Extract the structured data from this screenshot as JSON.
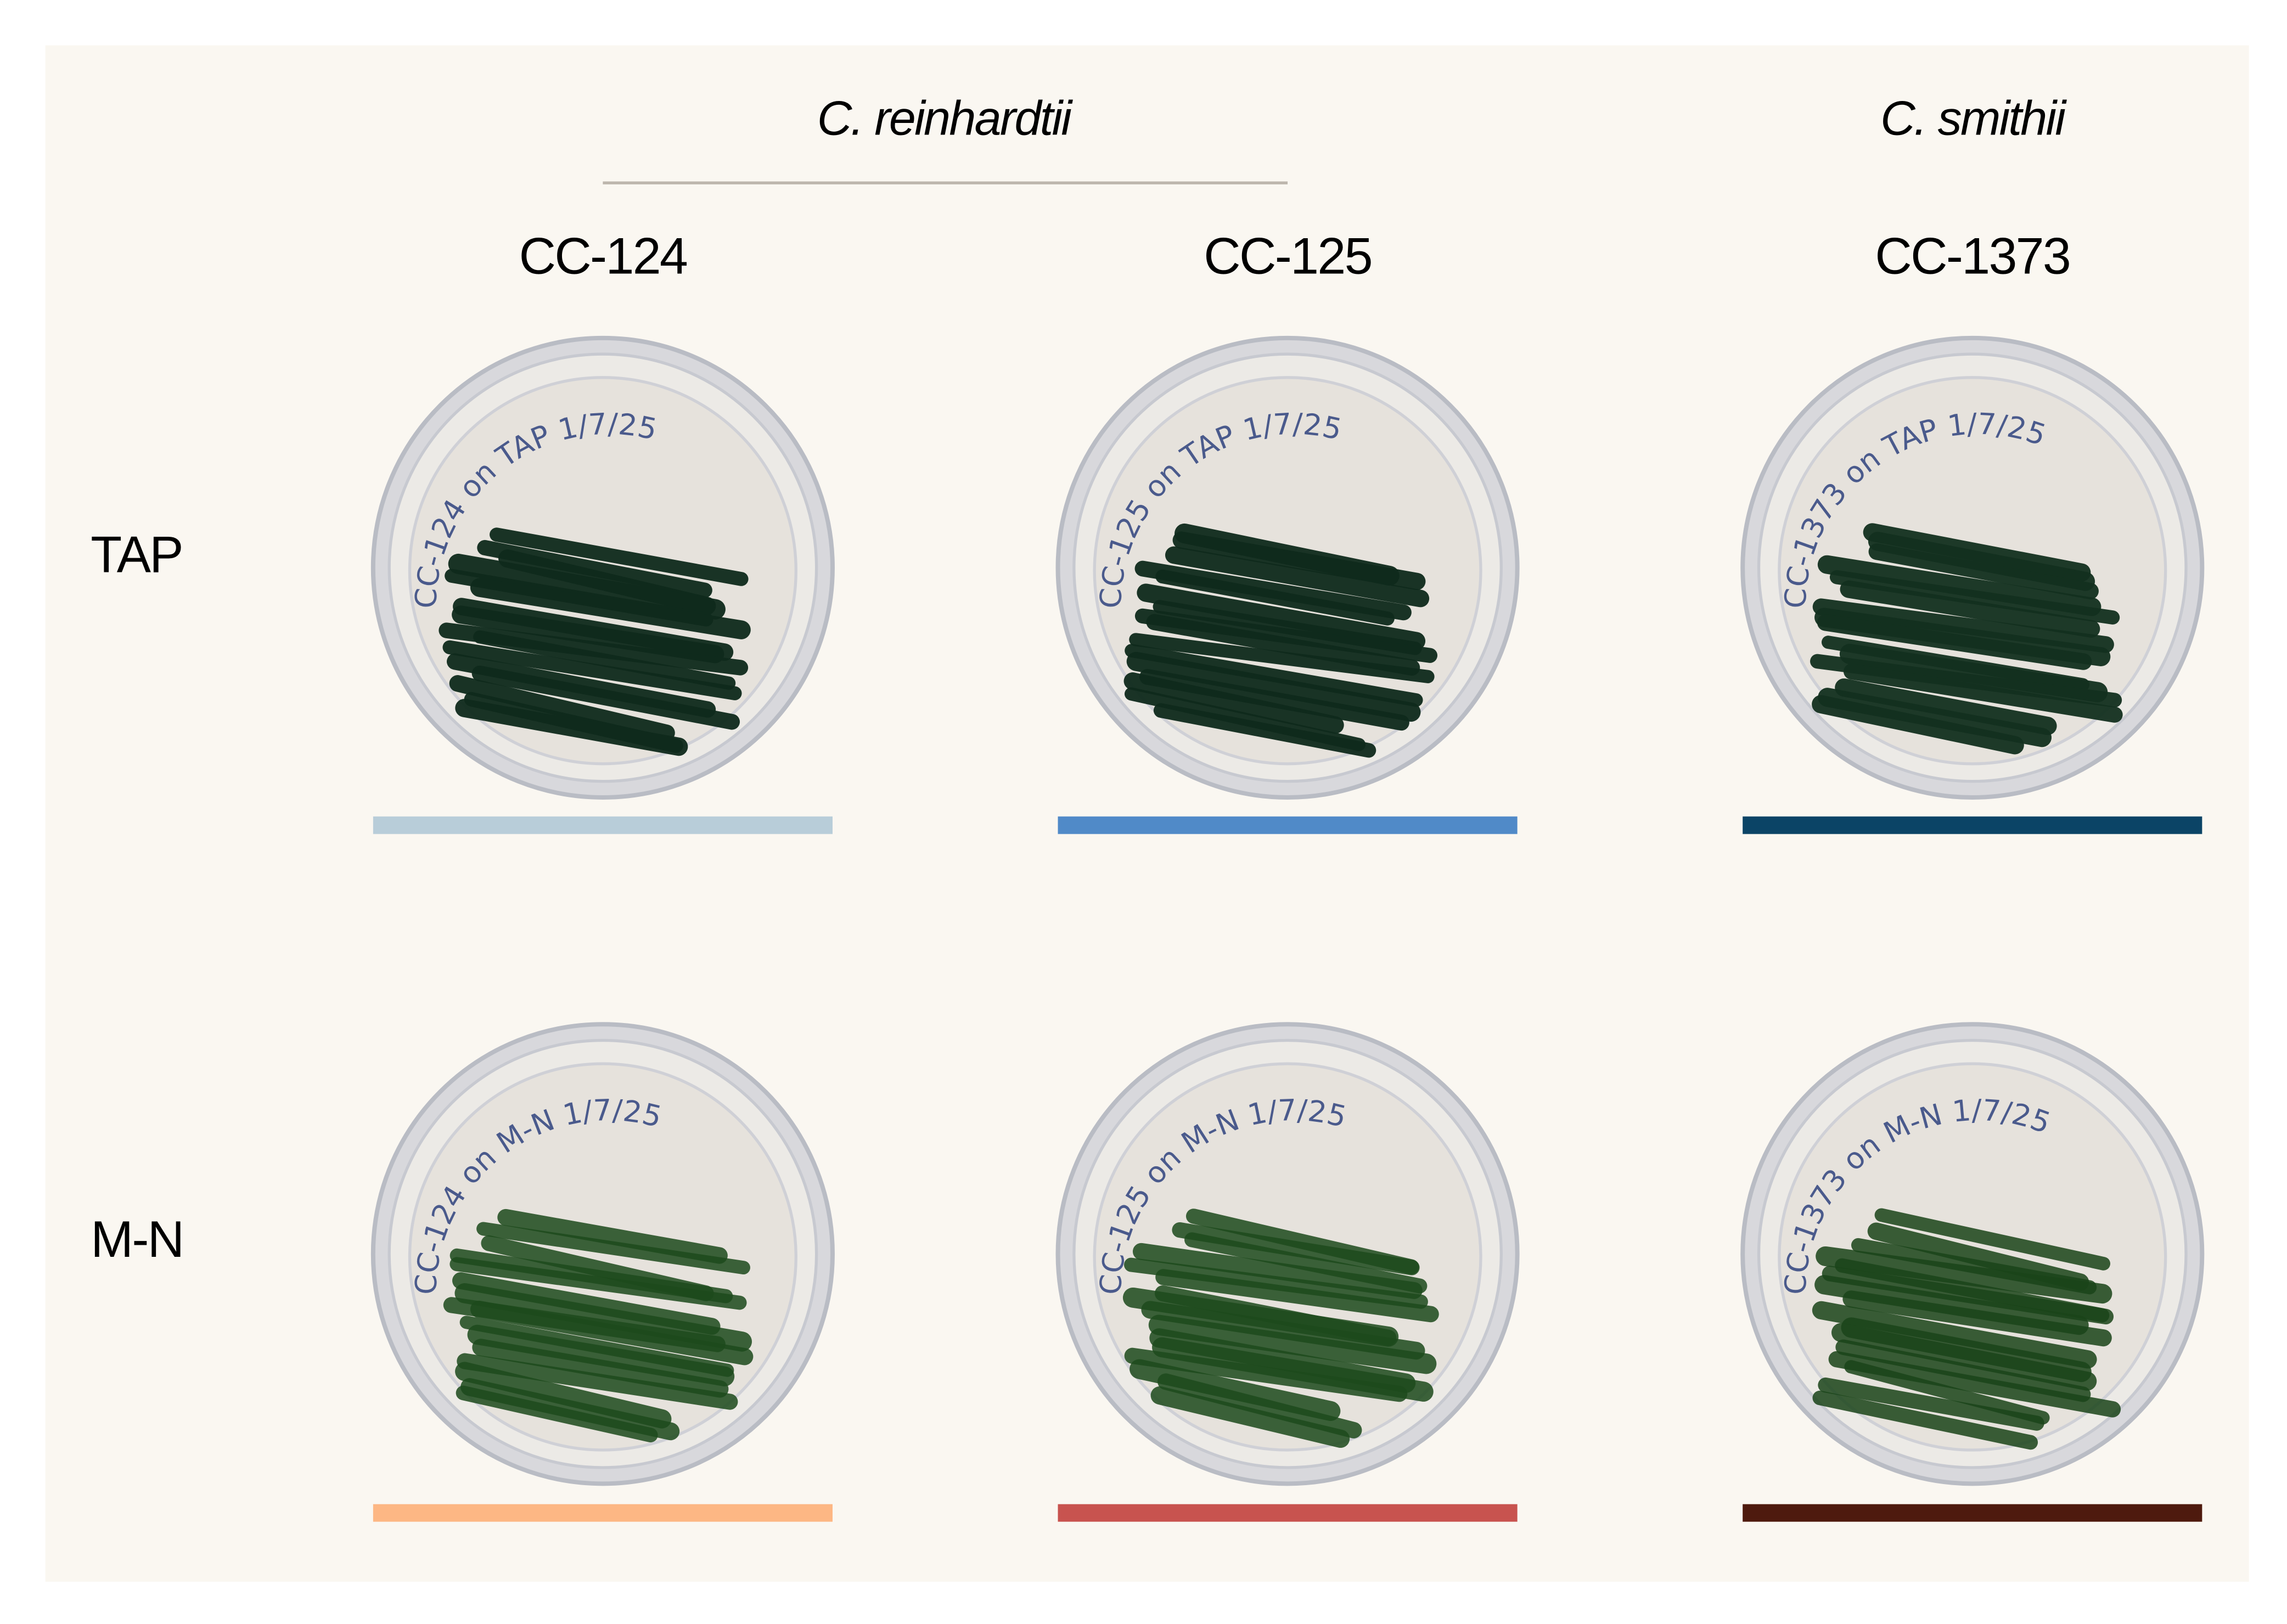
{
  "species": [
    {
      "label": "C. reinhardtii"
    },
    {
      "label": "C. smithii"
    }
  ],
  "strains": [
    {
      "label": "CC-124"
    },
    {
      "label": "CC-125"
    },
    {
      "label": "CC-1373"
    }
  ],
  "media": [
    {
      "label": "TAP"
    },
    {
      "label": "M-N"
    }
  ],
  "plates": [
    {
      "strain": "CC-124",
      "medium": "TAP",
      "handwriting": "CC-124 on TAP 1/7/25",
      "bar_color": "#b8cdd9",
      "colony_color": "#0f2a1c"
    },
    {
      "strain": "CC-125",
      "medium": "TAP",
      "handwriting": "CC-125 on TAP 1/7/25",
      "bar_color": "#508ac8",
      "colony_color": "#0f2a1c"
    },
    {
      "strain": "CC-1373",
      "medium": "TAP",
      "handwriting": "CC-1373 on TAP 1/7/25",
      "bar_color": "#0b4466",
      "colony_color": "#13301f"
    },
    {
      "strain": "CC-124",
      "medium": "M-N",
      "handwriting": "CC-124 on M-N 1/7/25",
      "bar_color": "#fdb784",
      "colony_color": "#1d4a1c"
    },
    {
      "strain": "CC-125",
      "medium": "M-N",
      "handwriting": "CC-125 on M-N 1/7/25",
      "bar_color": "#c8534f",
      "colony_color": "#1d4a1c"
    },
    {
      "strain": "CC-1373",
      "medium": "M-N",
      "handwriting": "CC-1373 on M-N 1/7/25",
      "bar_color": "#4e1a0e",
      "colony_color": "#1a4419"
    }
  ],
  "colors": {
    "background": "#faf7f1",
    "divider": "#bdb6ad",
    "ink": "#4a5a8c",
    "agar": "#e6e2dc"
  }
}
